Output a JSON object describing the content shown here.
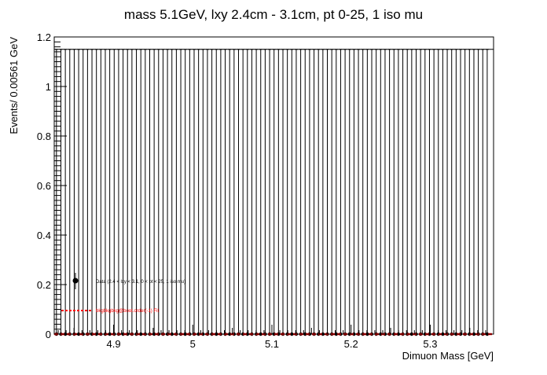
{
  "chart_data": {
    "type": "scatter",
    "title": "mass 5.1GeV, lxy 2.4cm - 3.1cm, pt 0-25, 1 iso mu",
    "xlabel": "Dimuon Mass [GeV]",
    "ylabel": "Events/ 0.00561 GeV",
    "xlim": [
      4.825,
      5.38
    ],
    "ylim": [
      0,
      1.2
    ],
    "x_ticks": [
      {
        "v": 4.9,
        "label": "4.9"
      },
      {
        "v": 5.0,
        "label": "5"
      },
      {
        "v": 5.1,
        "label": "5.1"
      },
      {
        "v": 5.2,
        "label": "5.2"
      },
      {
        "v": 5.3,
        "label": "5.3"
      }
    ],
    "y_ticks": [
      {
        "v": 0,
        "label": "0"
      },
      {
        "v": 0.2,
        "label": "0.2"
      },
      {
        "v": 0.4,
        "label": "0.4"
      },
      {
        "v": 0.6,
        "label": "0.6"
      },
      {
        "v": 0.8,
        "label": "0.8"
      },
      {
        "v": 1.0,
        "label": "1"
      },
      {
        "v": 1.2,
        "label": "1.2"
      }
    ],
    "bin_width": 0.00561,
    "error_bar_top": 1.15,
    "series": [
      {
        "name": "Data (2.4 < lxy < 3.1, 0 < pt < 25, 1 iso mu)",
        "kind": "points",
        "color": "#000000"
      },
      {
        "name": "bkgbkgbkg@boot.order(-1) Fit",
        "kind": "line",
        "color": "#ff0000"
      }
    ],
    "fit_value": 0,
    "legend_placement": "middle-left",
    "grid": false
  }
}
